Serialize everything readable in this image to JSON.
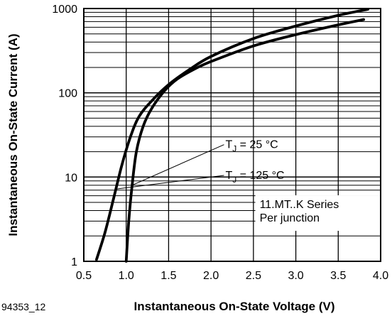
{
  "chart_data": {
    "type": "line",
    "title": "",
    "xlabel": "Instantaneous On-State Voltage (V)",
    "ylabel": "Instantaneous On-State Current (A)",
    "xlim": [
      0.5,
      4.0
    ],
    "ylim": [
      1,
      1000
    ],
    "yscale": "log",
    "grid": true,
    "x_ticks": [
      "0.5",
      "1.0",
      "1.5",
      "2.0",
      "2.5",
      "3.0",
      "3.5",
      "4.0"
    ],
    "y_ticks": [
      "1",
      "10",
      "100",
      "1000"
    ],
    "series": [
      {
        "name": "TJ = 25 °C",
        "points": [
          [
            0.65,
            1.05
          ],
          [
            0.75,
            2.2
          ],
          [
            0.85,
            5.5
          ],
          [
            0.95,
            14
          ],
          [
            1.05,
            30
          ],
          [
            1.15,
            52
          ],
          [
            1.3,
            80
          ],
          [
            1.5,
            125
          ],
          [
            1.75,
            190
          ],
          [
            2.0,
            270
          ],
          [
            2.5,
            440
          ],
          [
            3.0,
            620
          ],
          [
            3.5,
            830
          ],
          [
            3.85,
            980
          ]
        ]
      },
      {
        "name": "TJ = 125 °C",
        "points": [
          [
            1.0,
            1.0
          ],
          [
            1.03,
            3
          ],
          [
            1.07,
            8
          ],
          [
            1.12,
            20
          ],
          [
            1.2,
            40
          ],
          [
            1.3,
            65
          ],
          [
            1.45,
            105
          ],
          [
            1.6,
            145
          ],
          [
            1.8,
            190
          ],
          [
            2.0,
            235
          ],
          [
            2.5,
            360
          ],
          [
            3.0,
            490
          ],
          [
            3.5,
            640
          ],
          [
            3.8,
            740
          ]
        ]
      }
    ],
    "annotations": [
      {
        "text_main": "T",
        "text_sub": "J",
        "text_rest": " = 25 °C",
        "points_to": "TJ = 25 °C"
      },
      {
        "text_main": "T",
        "text_sub": "J",
        "text_rest": " = 125 °C",
        "points_to": "TJ = 125 °C"
      }
    ],
    "box_label": [
      "11.MT..K Series",
      "Per junction"
    ],
    "figure_id": "94353_12"
  }
}
